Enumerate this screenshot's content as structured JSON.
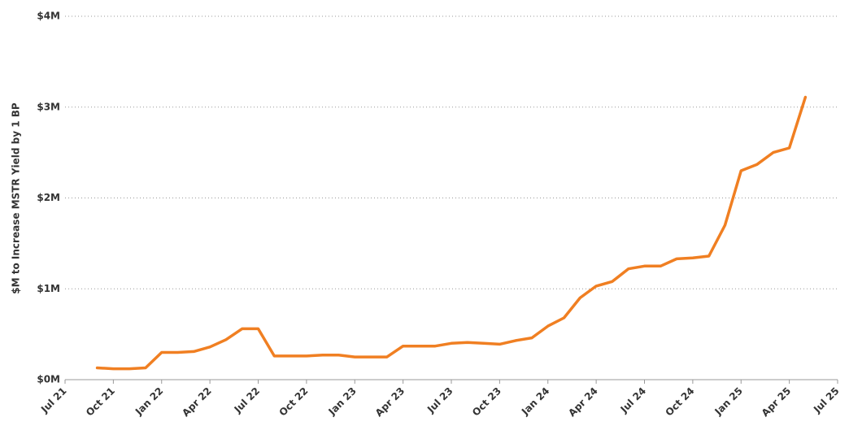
{
  "chart_data": {
    "type": "line",
    "y_label": "$M to Increase MSTR Yield by 1 BP",
    "x": [
      "2021-09",
      "2021-10",
      "2021-11",
      "2021-12",
      "2022-01",
      "2022-02",
      "2022-03",
      "2022-04",
      "2022-05",
      "2022-06",
      "2022-07",
      "2022-08",
      "2022-09",
      "2022-10",
      "2022-11",
      "2022-12",
      "2023-01",
      "2023-02",
      "2023-03",
      "2023-04",
      "2023-05",
      "2023-06",
      "2023-07",
      "2023-08",
      "2023-09",
      "2023-10",
      "2023-11",
      "2023-12",
      "2024-01",
      "2024-02",
      "2024-03",
      "2024-04",
      "2024-05",
      "2024-06",
      "2024-07",
      "2024-08",
      "2024-09",
      "2024-10",
      "2024-11",
      "2024-12",
      "2025-01",
      "2025-02",
      "2025-03",
      "2025-04",
      "2025-05"
    ],
    "series": [
      {
        "color": "#f07f22",
        "values": [
          0.13,
          0.12,
          0.12,
          0.13,
          0.3,
          0.3,
          0.31,
          0.36,
          0.44,
          0.56,
          0.56,
          0.26,
          0.26,
          0.26,
          0.27,
          0.27,
          0.25,
          0.25,
          0.25,
          0.37,
          0.37,
          0.37,
          0.4,
          0.41,
          0.4,
          0.39,
          0.43,
          0.46,
          0.59,
          0.68,
          0.9,
          1.03,
          1.08,
          1.22,
          1.25,
          1.25,
          1.33,
          1.34,
          1.36,
          1.7,
          2.3,
          2.37,
          2.5,
          2.55,
          3.11
        ]
      }
    ],
    "xlim": [
      "2021-07",
      "2025-07"
    ],
    "xticks": [
      {
        "value": "2021-07",
        "label": "Jul 21"
      },
      {
        "value": "2021-10",
        "label": "Oct 21"
      },
      {
        "value": "2022-01",
        "label": "Jan 22"
      },
      {
        "value": "2022-04",
        "label": "Apr 22"
      },
      {
        "value": "2022-07",
        "label": "Jul 22"
      },
      {
        "value": "2022-10",
        "label": "Oct 22"
      },
      {
        "value": "2023-01",
        "label": "Jan 23"
      },
      {
        "value": "2023-04",
        "label": "Apr 23"
      },
      {
        "value": "2023-07",
        "label": "Jul 23"
      },
      {
        "value": "2023-10",
        "label": "Oct 23"
      },
      {
        "value": "2024-01",
        "label": "Jan 24"
      },
      {
        "value": "2024-04",
        "label": "Apr 24"
      },
      {
        "value": "2024-07",
        "label": "Jul 24"
      },
      {
        "value": "2024-10",
        "label": "Oct 24"
      },
      {
        "value": "2025-01",
        "label": "Jan 25"
      },
      {
        "value": "2025-04",
        "label": "Apr 25"
      },
      {
        "value": "2025-07",
        "label": "Jul 25"
      }
    ],
    "ylim": [
      0,
      4
    ],
    "yticks": [
      {
        "value": 0,
        "label": "$0M"
      },
      {
        "value": 1,
        "label": "$1M"
      },
      {
        "value": 2,
        "label": "$2M"
      },
      {
        "value": 3,
        "label": "$3M"
      },
      {
        "value": 4,
        "label": "$4M"
      }
    ],
    "grid": true
  }
}
